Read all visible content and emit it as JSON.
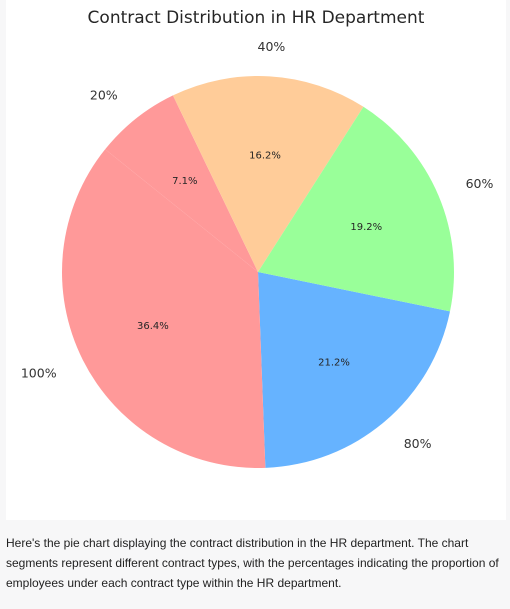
{
  "chart_data": {
    "type": "pie",
    "title": "Contract Distribution in HR Department",
    "slices": [
      {
        "label": "20%",
        "value": 7.1,
        "value_label": "7.1%",
        "color": "#ffcc99"
      },
      {
        "label": "40%",
        "value": 16.2,
        "value_label": "16.2%",
        "color": "#ffcc99"
      },
      {
        "label": "60%",
        "value": 19.2,
        "value_label": "19.2%",
        "color": "#99ff99"
      },
      {
        "label": "80%",
        "value": 21.2,
        "value_label": "21.2%",
        "color": "#66b3ff"
      },
      {
        "label": "100%",
        "value": 36.4,
        "value_label": "36.4%",
        "color": "#ff9999"
      }
    ],
    "legend": "none"
  },
  "caption": "Here's the pie chart displaying the contract distribution in the HR department. The chart segments represent different contract types, with the percentages indicating the proportion of employees under each contract type within the HR department."
}
